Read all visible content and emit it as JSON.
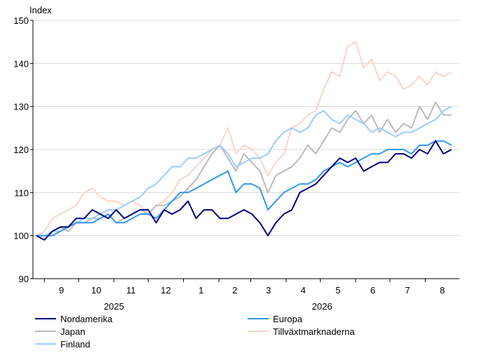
{
  "chart_data": {
    "type": "line",
    "ylabel": "Index",
    "ylim": [
      90,
      150
    ],
    "yticks": [
      90,
      100,
      110,
      120,
      130,
      140,
      150
    ],
    "grid": "horizontal",
    "x_month_labels": [
      "9",
      "10",
      "11",
      "12",
      "1",
      "2",
      "3",
      "4",
      "5",
      "6",
      "7",
      "8"
    ],
    "x_year_labels": [
      "2025",
      "2026"
    ],
    "legend_position": "bottom",
    "x": [
      "2025-08-25",
      "2025-09-01",
      "2025-09-08",
      "2025-09-15",
      "2025-09-22",
      "2025-09-29",
      "2025-10-06",
      "2025-10-13",
      "2025-10-20",
      "2025-10-27",
      "2025-11-03",
      "2025-11-10",
      "2025-11-17",
      "2025-11-24",
      "2025-12-01",
      "2025-12-08",
      "2025-12-15",
      "2025-12-22",
      "2025-12-29",
      "2026-01-05",
      "2026-01-12",
      "2026-01-19",
      "2026-01-26",
      "2026-02-02",
      "2026-02-09",
      "2026-02-16",
      "2026-02-23",
      "2026-03-02",
      "2026-03-09",
      "2026-03-16",
      "2026-03-23",
      "2026-03-30",
      "2026-04-06",
      "2026-04-13",
      "2026-04-20",
      "2026-04-27",
      "2026-05-04",
      "2026-05-11",
      "2026-05-18",
      "2026-05-25",
      "2026-06-01",
      "2026-06-08",
      "2026-06-15",
      "2026-06-22",
      "2026-06-29",
      "2026-07-06",
      "2026-07-13",
      "2026-07-20",
      "2026-07-27",
      "2026-08-03",
      "2026-08-10",
      "2026-08-17",
      "2026-08-24"
    ],
    "series": [
      {
        "name": "Nordamerika",
        "color": "#000080",
        "values": [
          100,
          99,
          101,
          102,
          102,
          104,
          104,
          106,
          105,
          104,
          106,
          104,
          105,
          106,
          106,
          103,
          106,
          105,
          106,
          108,
          104,
          106,
          106,
          104,
          104,
          105,
          106,
          105,
          103,
          100,
          103,
          105,
          106,
          110,
          111,
          112,
          114,
          116,
          118,
          117,
          118,
          115,
          116,
          117,
          117,
          119,
          119,
          118,
          120,
          119,
          122,
          119,
          120
        ]
      },
      {
        "name": "Europa",
        "color": "#3399ee",
        "values": [
          100,
          100,
          100,
          101,
          102,
          103,
          103,
          103,
          104,
          105,
          103,
          103,
          104,
          105,
          105,
          104,
          106,
          108,
          110,
          110,
          111,
          112,
          113,
          114,
          115,
          110,
          112,
          112,
          111,
          106,
          108,
          110,
          111,
          112,
          112,
          113,
          115,
          116,
          117,
          116,
          117,
          118,
          119,
          119,
          120,
          120,
          120,
          119,
          121,
          121,
          122,
          122,
          121
        ]
      },
      {
        "name": "Japan",
        "color": "#bbbbbb",
        "values": [
          100,
          99,
          101,
          102,
          101,
          103,
          103,
          104,
          104,
          105,
          103,
          104,
          105,
          106,
          105,
          107,
          107,
          108,
          109,
          111,
          113,
          116,
          119,
          121,
          118,
          115,
          119,
          117,
          115,
          110,
          114,
          115,
          116,
          118,
          121,
          119,
          122,
          125,
          124,
          127,
          129,
          126,
          128,
          124,
          127,
          124,
          126,
          125,
          130,
          127,
          131,
          128,
          128
        ]
      },
      {
        "name": "Tillväxtmarknaderna",
        "color": "#f9d5c8",
        "values": [
          100,
          101,
          104,
          105,
          106,
          107,
          110,
          111,
          109,
          108,
          108,
          107,
          108,
          107,
          105,
          107,
          108,
          110,
          113,
          114,
          116,
          118,
          120,
          121,
          125,
          119,
          121,
          120,
          118,
          114,
          117,
          119,
          125,
          126,
          128,
          129,
          134,
          138,
          137,
          144,
          145,
          139,
          141,
          136,
          138,
          137,
          134,
          135,
          137,
          135,
          138,
          137,
          138
        ]
      },
      {
        "name": "Finland",
        "color": "#99ccff",
        "values": [
          100,
          100,
          101,
          101,
          102,
          103,
          104,
          104,
          105,
          106,
          106,
          107,
          108,
          109,
          111,
          112,
          114,
          116,
          116,
          118,
          118,
          119,
          120,
          121,
          119,
          116,
          117,
          118,
          118,
          119,
          122,
          124,
          125,
          124,
          125,
          128,
          129,
          127,
          126,
          128,
          127,
          126,
          124,
          125,
          124,
          123,
          124,
          124,
          125,
          126,
          127,
          129,
          130
        ]
      }
    ]
  }
}
